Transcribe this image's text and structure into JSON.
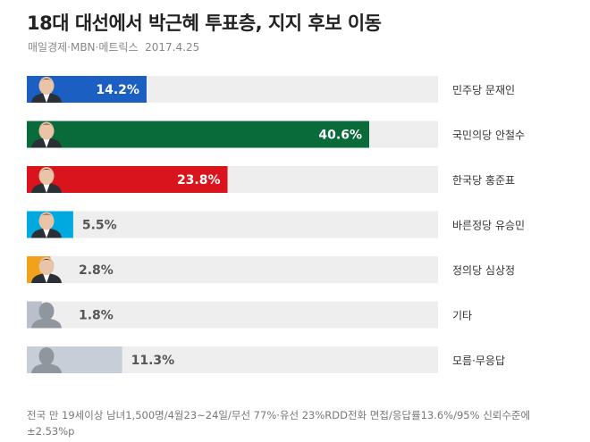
{
  "header": {
    "title": "18대 대선에서 박근혜 투표층, 지지 후보 이동",
    "source": "매일경제·MBN·메트릭스",
    "date": "2017.4.25"
  },
  "footnote": "전국 만 19세이상 남녀1,500명/4월23~24일/무선 77%·유선 23%RDD전화 면접/응답률13.6%/95% 신뢰수준에 ±2.53%p",
  "chart_data": {
    "type": "bar",
    "orientation": "horizontal",
    "categories": [
      "민주당 문재인",
      "국민의당 안철수",
      "한국당 홍준표",
      "바른정당 유승민",
      "정의당 심상정",
      "기타",
      "모름·무응답"
    ],
    "values": [
      14.2,
      40.6,
      23.8,
      5.5,
      2.8,
      1.8,
      11.3
    ],
    "data_labels": [
      "14.2%",
      "40.6%",
      "23.8%",
      "5.5%",
      "2.8%",
      "1.8%",
      "11.3%"
    ],
    "unit": "%",
    "xlim": [
      0,
      100
    ],
    "grid": false,
    "legend": "none",
    "colors": [
      "#1a5fc1",
      "#0a6b3a",
      "#d9141c",
      "#00a9e0",
      "#f0a21a",
      "#b9c0cb",
      "#c8ced8"
    ],
    "track_color": "#eeeeee",
    "avatar_icons": [
      "candidate-photo-icon",
      "candidate-photo-icon",
      "candidate-photo-icon",
      "candidate-photo-icon",
      "candidate-photo-icon",
      "person-silhouette-icon",
      "person-silhouette-icon"
    ]
  }
}
